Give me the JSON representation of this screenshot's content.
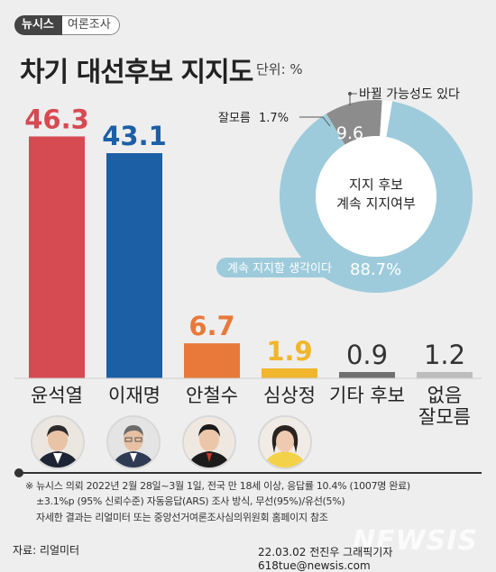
{
  "brand": {
    "left": "뉴시스",
    "right": "여론조사"
  },
  "title": "차기 대선후보 지지도",
  "unit": "단위: %",
  "chart_data": [
    {
      "type": "bar",
      "categories": [
        "윤석열",
        "이재명",
        "안철수",
        "심상정",
        "기타 후보",
        "없음\n잘모름"
      ],
      "values": [
        46.3,
        43.1,
        6.7,
        1.9,
        0.9,
        1.2
      ],
      "value_labels": [
        "46.3",
        "43.1",
        "6.7",
        "1.9",
        "0.9",
        "1.2"
      ],
      "colors": [
        "#d64a52",
        "#1d5fa5",
        "#e8793a",
        "#f0b62c",
        "#6f6f6f",
        "#bdbdbd"
      ],
      "label_colors": [
        "#d64a52",
        "#1d5fa5",
        "#e8793a",
        "#f0b62c",
        "#333333",
        "#333333"
      ],
      "ylim": [
        0,
        50
      ]
    },
    {
      "type": "pie",
      "center_label": [
        "지지 후보",
        "계속 지지여부"
      ],
      "slices": [
        {
          "label": "계속 지지할 생각이다",
          "value": 88.7,
          "value_label": "88.7%",
          "color": "#9dcbdb"
        },
        {
          "label": "바뀔 가능성도 있다",
          "value": 9.6,
          "value_label": "9.6",
          "color": "#8c8c8c"
        },
        {
          "label": "잘모름",
          "value": 1.7,
          "value_label": "1.7%",
          "color": "#ffffff"
        }
      ]
    }
  ],
  "notes": [
    "※ 뉴시스 의뢰 2022년 2월 28일~3월 1일, 전국 만 18세 이상, 응답률 10.4% (1007명 완료)",
    "±3.1%p (95% 신뢰수준) 자동응답(ARS) 조사 방식, 무선(95%)/유선(5%)",
    "자세한 결과는 리얼미터 또는 중앙선거여론조사심의위원회 홈페이지 참조"
  ],
  "source": "자료: 리얼미터",
  "credit": "22.03.02 전진우 그래픽기자 618tue@newsis.com",
  "watermark": "NEWSIS"
}
